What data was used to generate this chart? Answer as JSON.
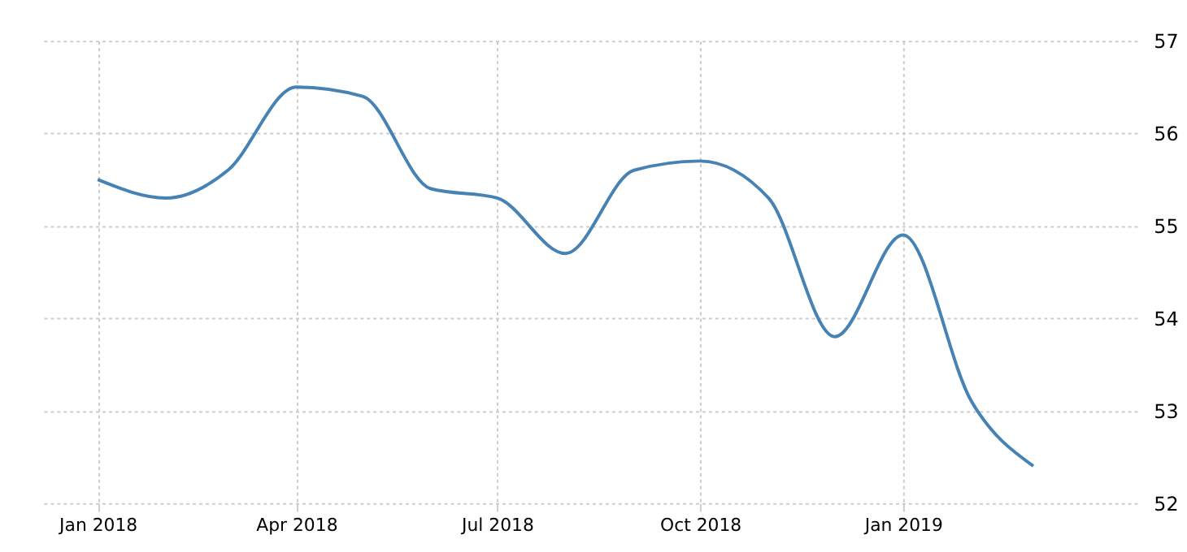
{
  "chart_data": {
    "type": "line",
    "x": [
      "2018-01",
      "2018-02",
      "2018-03",
      "2018-04",
      "2018-05",
      "2018-06",
      "2018-07",
      "2018-08",
      "2018-09",
      "2018-10",
      "2018-11",
      "2018-12",
      "2019-01",
      "2019-02",
      "2019-03"
    ],
    "series": [
      {
        "color": "#4682b4",
        "values": [
          55.5,
          55.3,
          55.6,
          56.5,
          56.4,
          55.4,
          55.3,
          54.7,
          55.6,
          55.7,
          55.3,
          53.8,
          54.9,
          53.1,
          52.4
        ]
      }
    ],
    "xlim": [
      "2017-12-06",
      "2019-04-17"
    ],
    "xticks": [
      {
        "value": "2018-01",
        "label": "Jan 2018"
      },
      {
        "value": "2018-04",
        "label": "Apr 2018"
      },
      {
        "value": "2018-07",
        "label": "Jul 2018"
      },
      {
        "value": "2018-10",
        "label": "Oct 2018"
      },
      {
        "value": "2019-01",
        "label": "Jan 2019"
      }
    ],
    "ylim": [
      52,
      57
    ],
    "yticks": [
      52,
      53,
      54,
      55,
      56,
      57
    ],
    "grid": true,
    "marker": "none",
    "line_style": "solid"
  }
}
